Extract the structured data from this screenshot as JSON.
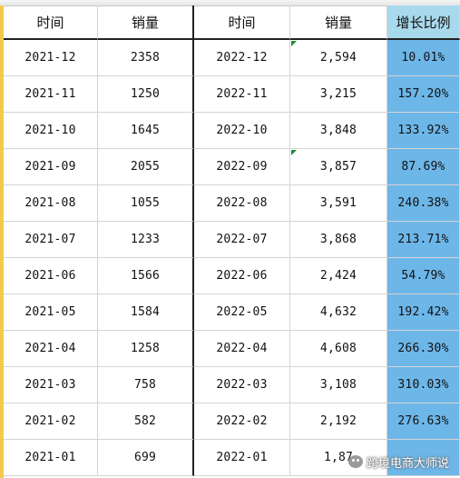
{
  "headers": {
    "time_2021": "时间",
    "sales_2021": "销量",
    "time_2022": "时间",
    "sales_2022": "销量",
    "growth": "增长比例"
  },
  "rows": [
    {
      "t21": "2021-12",
      "s21": "2358",
      "t22": "2022-12",
      "s22": "2,594",
      "g": "10.01%"
    },
    {
      "t21": "2021-11",
      "s21": "1250",
      "t22": "2022-11",
      "s22": "3,215",
      "g": "157.20%"
    },
    {
      "t21": "2021-10",
      "s21": "1645",
      "t22": "2022-10",
      "s22": "3,848",
      "g": "133.92%"
    },
    {
      "t21": "2021-09",
      "s21": "2055",
      "t22": "2022-09",
      "s22": "3,857",
      "g": "87.69%"
    },
    {
      "t21": "2021-08",
      "s21": "1055",
      "t22": "2022-08",
      "s22": "3,591",
      "g": "240.38%"
    },
    {
      "t21": "2021-07",
      "s21": "1233",
      "t22": "2022-07",
      "s22": "3,868",
      "g": "213.71%"
    },
    {
      "t21": "2021-06",
      "s21": "1566",
      "t22": "2022-06",
      "s22": "2,424",
      "g": "54.79%"
    },
    {
      "t21": "2021-05",
      "s21": "1584",
      "t22": "2022-05",
      "s22": "4,632",
      "g": "192.42%"
    },
    {
      "t21": "2021-04",
      "s21": "1258",
      "t22": "2022-04",
      "s22": "4,608",
      "g": "266.30%"
    },
    {
      "t21": "2021-03",
      "s21": "758",
      "t22": "2022-03",
      "s22": "3,108",
      "g": "310.03%"
    },
    {
      "t21": "2021-02",
      "s21": "582",
      "t22": "2022-02",
      "s22": "2,192",
      "g": "276.63%"
    },
    {
      "t21": "2021-01",
      "s21": "699",
      "t22": "2022-01",
      "s22": "1,87",
      "g": ""
    }
  ],
  "watermark": "跨境电商大师说",
  "colors": {
    "growth_fill": "#6db6e8",
    "growth_header_fill": "#a9d9ec",
    "row_marker": "#f2c94c",
    "comment_marker": "#1f8a3a"
  }
}
